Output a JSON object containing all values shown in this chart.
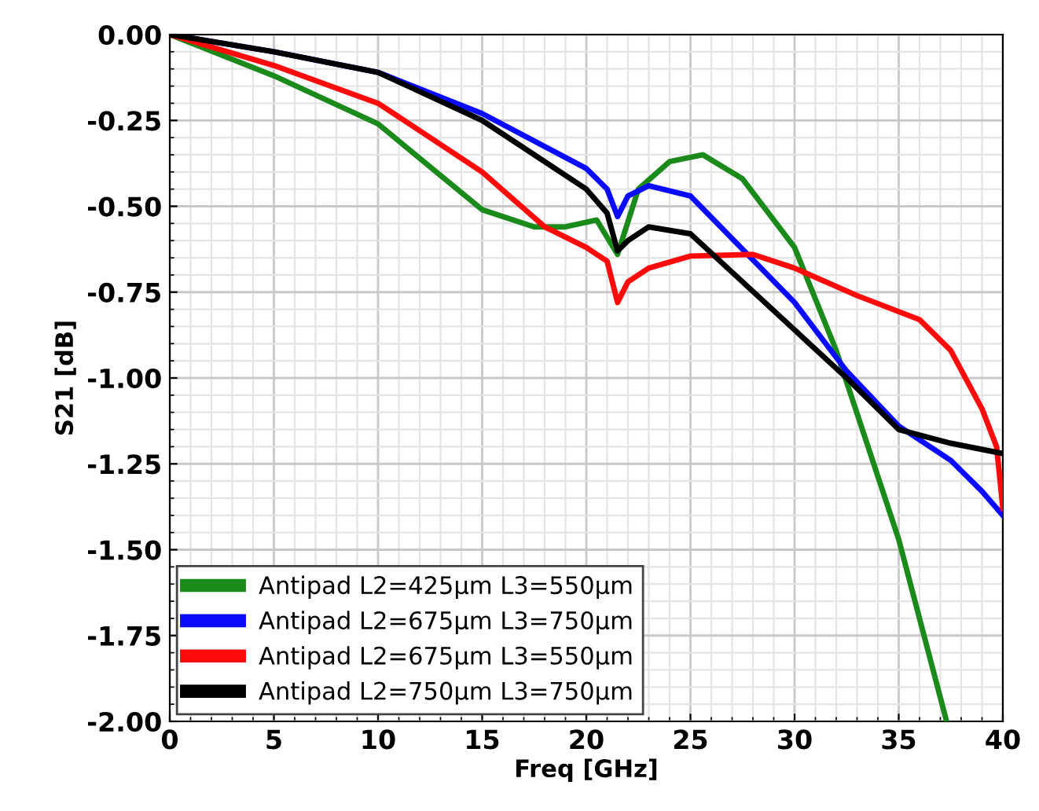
{
  "chart_data": {
    "type": "line",
    "xlabel": "Freq [GHz]",
    "ylabel": "S21 [dB]",
    "xlim": [
      0,
      40
    ],
    "ylim": [
      -2,
      0
    ],
    "xticks": [
      0,
      5,
      10,
      15,
      20,
      25,
      30,
      35,
      40
    ],
    "yticks": [
      {
        "value": -2,
        "label": "-2.00"
      },
      {
        "value": -1.75,
        "label": "-1.75"
      },
      {
        "value": -1.5,
        "label": "-1.50"
      },
      {
        "value": -1.25,
        "label": "-1.25"
      },
      {
        "value": -1,
        "label": "-1.00"
      },
      {
        "value": -0.75,
        "label": "-0.75"
      },
      {
        "value": -0.5,
        "label": "-0.50"
      },
      {
        "value": -0.25,
        "label": "-0.25"
      },
      {
        "value": 0,
        "label": "0.00"
      }
    ],
    "grid": true,
    "legend": "bottom left",
    "line_style": "solid",
    "series": [
      {
        "name": "Antipad L2=425μm L3=550μm",
        "color": "#1a8a1a",
        "x": [
          0,
          5,
          10,
          15,
          17.5,
          19,
          20.5,
          21.5,
          22.5,
          24,
          25.6,
          27.5,
          30,
          32,
          35,
          37.3
        ],
        "values": [
          0,
          -0.12,
          -0.26,
          -0.51,
          -0.56,
          -0.56,
          -0.54,
          -0.64,
          -0.45,
          -0.37,
          -0.35,
          -0.42,
          -0.62,
          -0.92,
          -1.47,
          -2.0
        ]
      },
      {
        "name": "Antipad L2=675μm L3=750μm",
        "color": "#0a0aff",
        "x": [
          0,
          5,
          10,
          15,
          20,
          21,
          21.5,
          22,
          23,
          25,
          30,
          32.5,
          35,
          37.5,
          39,
          40
        ],
        "values": [
          0,
          -0.05,
          -0.11,
          -0.23,
          -0.39,
          -0.45,
          -0.53,
          -0.47,
          -0.44,
          -0.47,
          -0.78,
          -0.98,
          -1.14,
          -1.24,
          -1.33,
          -1.4
        ]
      },
      {
        "name": "Antipad L2=675μm L3=550μm",
        "color": "#ff0a0a",
        "x": [
          0,
          5,
          10,
          15,
          18,
          20,
          21,
          21.5,
          22,
          23,
          25,
          28,
          30,
          33,
          36,
          37.5,
          39,
          39.7,
          40
        ],
        "values": [
          0,
          -0.09,
          -0.2,
          -0.4,
          -0.56,
          -0.62,
          -0.66,
          -0.78,
          -0.72,
          -0.68,
          -0.645,
          -0.64,
          -0.68,
          -0.76,
          -0.83,
          -0.92,
          -1.09,
          -1.2,
          -1.38
        ]
      },
      {
        "name": "Antipad L2=750μm L3=750μm",
        "color": "#000000",
        "x": [
          0,
          5,
          10,
          15,
          20,
          21,
          21.5,
          22,
          23,
          25,
          30,
          32.5,
          35,
          37.5,
          40
        ],
        "values": [
          0,
          -0.05,
          -0.11,
          -0.25,
          -0.45,
          -0.52,
          -0.63,
          -0.6,
          -0.56,
          -0.58,
          -0.86,
          -1.0,
          -1.15,
          -1.19,
          -1.22
        ]
      }
    ]
  }
}
